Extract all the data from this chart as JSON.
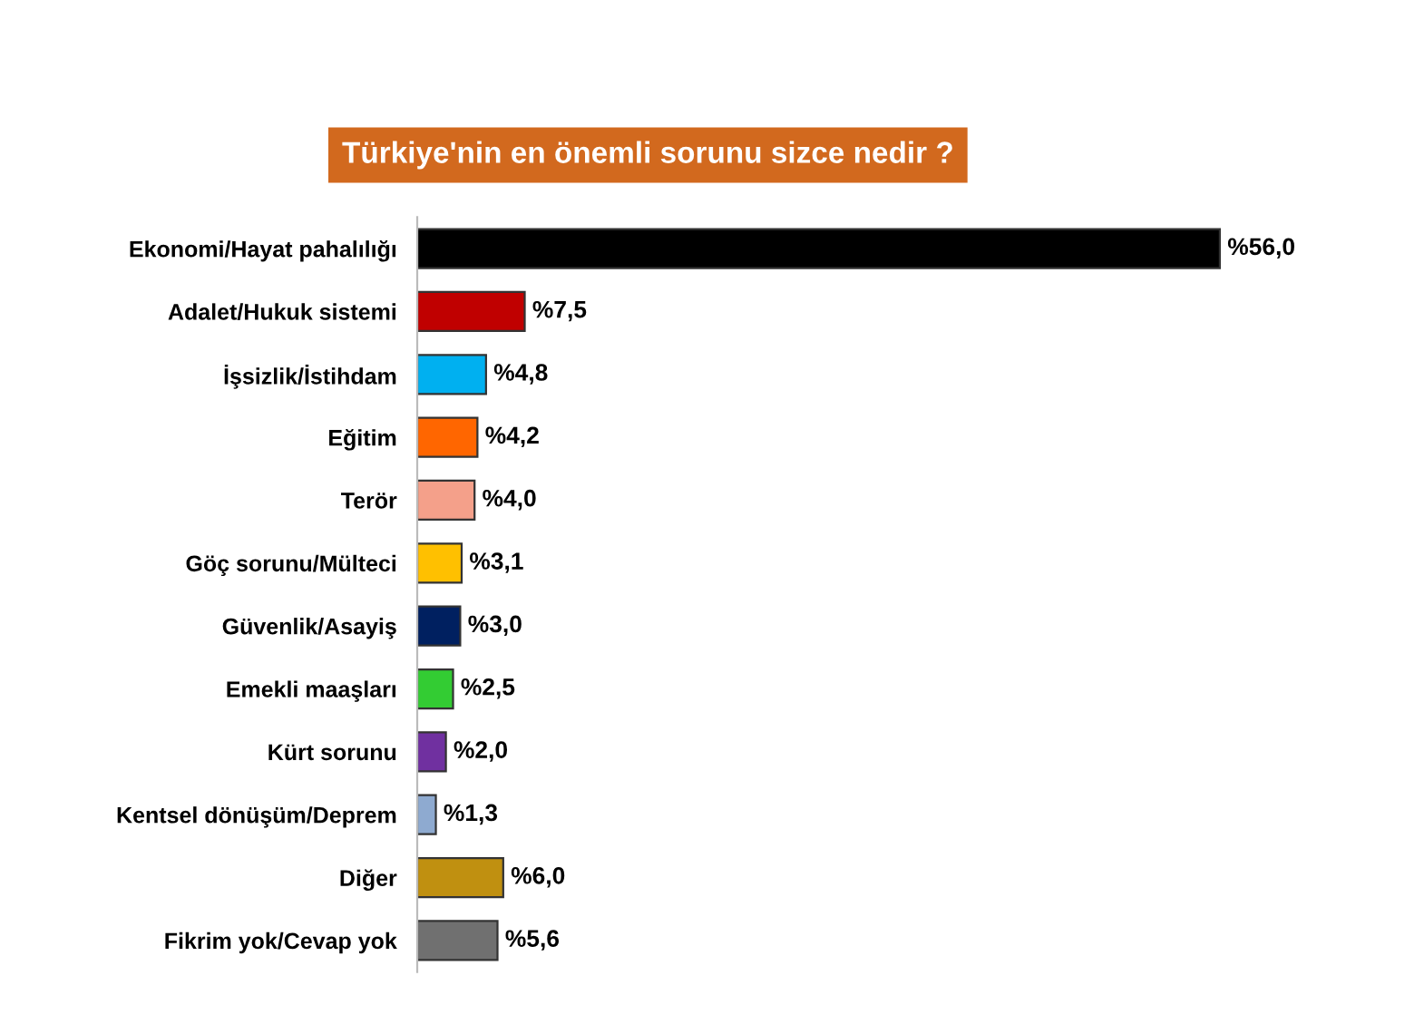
{
  "chart_data": {
    "type": "bar",
    "orientation": "horizontal",
    "title": "Türkiye'nin en önemli sorunu sizce nedir ?",
    "categories": [
      "Ekonomi/Hayat pahalılığı",
      "Adalet/Hukuk sistemi",
      "İşsizlik/İstihdam",
      "Eğitim",
      "Terör",
      "Göç sorunu/Mülteci",
      "Güvenlik/Asayiş",
      "Emekli maaşları",
      "Kürt sorunu",
      "Kentsel dönüşüm/Deprem",
      "Diğer",
      "Fikrim yok/Cevap yok"
    ],
    "values": [
      56.0,
      7.5,
      4.8,
      4.2,
      4.0,
      3.1,
      3.0,
      2.5,
      2.0,
      1.3,
      6.0,
      5.6
    ],
    "value_labels": [
      "%56,0",
      "%7,5",
      "%4,8",
      "%4,2",
      "%4,0",
      "%3,1",
      "%3,0",
      "%2,5",
      "%2,0",
      "%1,3",
      "%6,0",
      "%5,6"
    ],
    "colors": [
      "#000000",
      "#c00000",
      "#00b0f0",
      "#ff6600",
      "#f4a08a",
      "#ffc000",
      "#002060",
      "#33cc33",
      "#7030a0",
      "#8eaad0",
      "#c09010",
      "#707070"
    ],
    "grid": false,
    "legend": false
  }
}
